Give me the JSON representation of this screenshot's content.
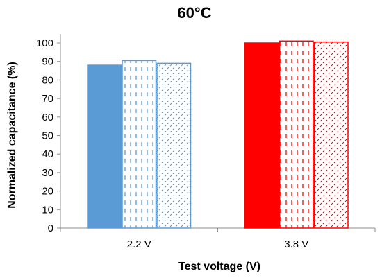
{
  "chart_data": {
    "type": "bar",
    "title": "60°C",
    "xlabel": "Test voltage (V)",
    "ylabel": "Normalized capacitance (%)",
    "ylim": [
      0,
      100
    ],
    "yticks": [
      0,
      10,
      20,
      30,
      40,
      50,
      60,
      70,
      80,
      90,
      100
    ],
    "categories": [
      "2.2 V",
      "3.8 V"
    ],
    "grid": false,
    "legend": "none",
    "series": [
      {
        "values": [
          88,
          100
        ],
        "fill": "solid"
      },
      {
        "values": [
          90.5,
          101
        ],
        "fill": "dashed-vertical"
      },
      {
        "values": [
          89,
          100.5
        ],
        "fill": "dotted-diagonal"
      }
    ],
    "colors": {
      "2.2 V": "#5b9bd5",
      "3.8 V": "#ff0000"
    }
  }
}
